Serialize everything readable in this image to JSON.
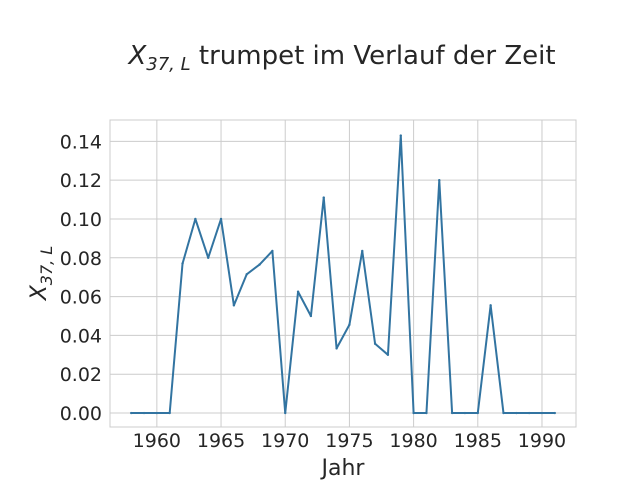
{
  "chart_data": {
    "type": "line",
    "title": {
      "symbol": "X",
      "subscript": "37, L",
      "text": " trumpet im Verlauf der Zeit"
    },
    "xlabel": "Jahr",
    "ylabel": {
      "symbol": "X",
      "subscript": "37, L"
    },
    "xlim": [
      1956.35,
      1992.65
    ],
    "ylim": [
      -0.0072,
      0.151
    ],
    "xticks": [
      1960,
      1965,
      1970,
      1975,
      1980,
      1985,
      1990
    ],
    "yticks": [
      0.0,
      0.02,
      0.04,
      0.06,
      0.08,
      0.1,
      0.12,
      0.14
    ],
    "ytick_labels": [
      "0.00",
      "0.02",
      "0.04",
      "0.06",
      "0.08",
      "0.10",
      "0.12",
      "0.14"
    ],
    "grid": true,
    "line_color": "#3274a1",
    "grid_color": "#cccccc",
    "series": [
      {
        "x": [
          1958,
          1959,
          1960,
          1961,
          1962,
          1963,
          1964,
          1965,
          1966,
          1967,
          1968,
          1969,
          1970,
          1971,
          1972,
          1973,
          1974,
          1975,
          1976,
          1977,
          1978,
          1979,
          1980,
          1981,
          1982,
          1983,
          1984,
          1985,
          1986,
          1987,
          1988,
          1989,
          1990,
          1991
        ],
        "values": [
          0.0,
          0.0,
          0.0,
          0.0,
          0.077,
          0.1,
          0.08,
          0.1,
          0.0555,
          0.0715,
          0.0765,
          0.0835,
          0.0,
          0.0625,
          0.05,
          0.111,
          0.0333,
          0.0455,
          0.0835,
          0.0357,
          0.03,
          0.143,
          0.0,
          0.0,
          0.12,
          0.0,
          0.0,
          0.0,
          0.0555,
          0.0,
          0.0,
          0.0,
          0.0,
          0.0
        ]
      }
    ]
  }
}
